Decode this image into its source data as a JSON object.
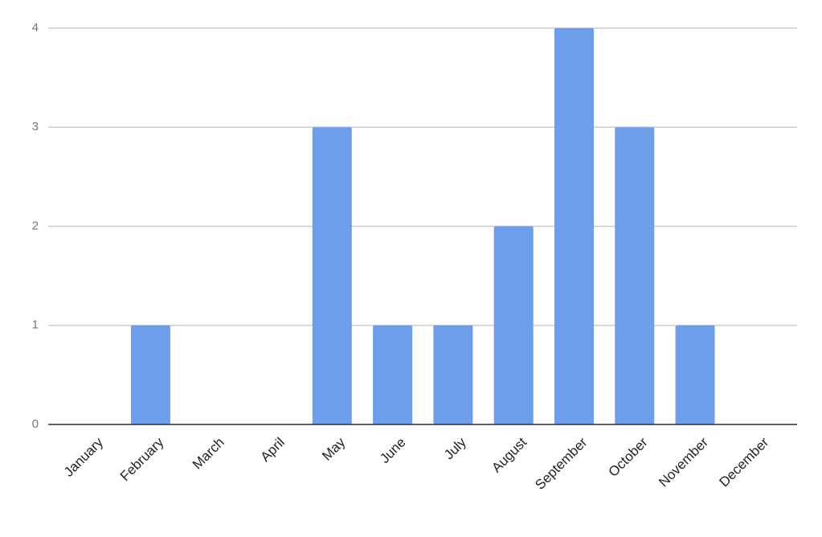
{
  "chart_data": {
    "type": "bar",
    "categories": [
      "January",
      "February",
      "March",
      "April",
      "May",
      "June",
      "July",
      "August",
      "September",
      "October",
      "November",
      "December"
    ],
    "values": [
      0,
      1,
      0,
      0,
      3,
      1,
      1,
      2,
      4,
      3,
      1,
      0
    ],
    "color": "#6d9eeb",
    "ylim": [
      0,
      4
    ],
    "yticks": [
      0,
      1,
      2,
      3,
      4
    ],
    "grid": true
  }
}
